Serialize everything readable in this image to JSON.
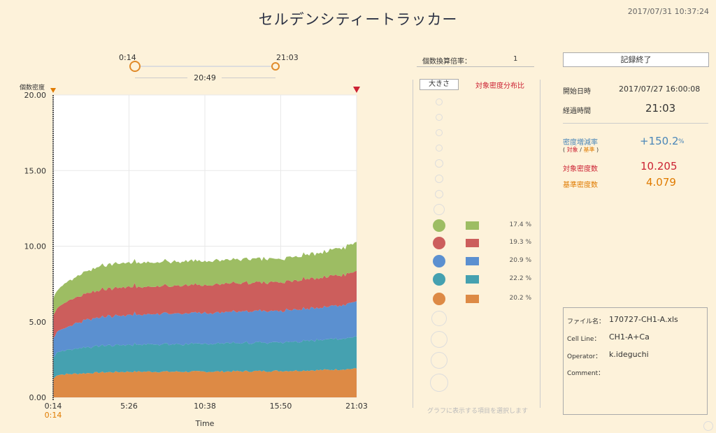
{
  "header": {
    "title": "セルデンシティートラッカー",
    "datetime": "2017/07/31 10:37:24"
  },
  "range": {
    "start": "0:14",
    "end": "21:03",
    "duration": "20:49"
  },
  "chart_data": {
    "type": "area",
    "title": "",
    "ylabel": "個数密度",
    "xlabel": "Time",
    "ylim": [
      0,
      20
    ],
    "yticks": [
      "0.00",
      "5.00",
      "10.00",
      "15.00",
      "20.00"
    ],
    "xticks": [
      "0:14",
      "5:26",
      "10:38",
      "15:50",
      "21:03"
    ],
    "x_highlight_label": "0:14",
    "x": [
      "0:14",
      "0:30",
      "1:30",
      "2:30",
      "3:30",
      "5:26",
      "10:38",
      "15:50",
      "18:30",
      "21:03"
    ],
    "series": [
      {
        "values": [
          1.2,
          1.5,
          1.55,
          1.6,
          1.65,
          1.7,
          1.7,
          1.75,
          1.8,
          1.9
        ],
        "color": "#dd8a45"
      },
      {
        "values": [
          1.4,
          1.5,
          1.6,
          1.7,
          1.75,
          1.8,
          1.85,
          1.9,
          2.0,
          2.1
        ],
        "color": "#45a1b0"
      },
      {
        "values": [
          1.3,
          1.4,
          1.6,
          1.8,
          1.9,
          2.0,
          2.05,
          2.1,
          2.15,
          2.3
        ],
        "color": "#5b90d0"
      },
      {
        "values": [
          1.5,
          1.6,
          1.7,
          1.75,
          1.8,
          1.85,
          1.85,
          1.9,
          2.0,
          2.0
        ],
        "color": "#cc5e5c"
      },
      {
        "values": [
          1.1,
          1.2,
          1.3,
          1.45,
          1.6,
          1.6,
          1.6,
          1.55,
          1.65,
          1.9
        ],
        "color": "#9dbd63"
      }
    ],
    "grid": true
  },
  "middle": {
    "ratio_label": "個数換算倍率：",
    "ratio_value": "1",
    "size_button": "大きさ",
    "dist_label": "対象密度分布比",
    "legend": [
      {
        "color": "#9dbd63",
        "pct": "17.4 %"
      },
      {
        "color": "#cc5e5c",
        "pct": "19.3 %"
      },
      {
        "color": "#5b90d0",
        "pct": "20.9 %"
      },
      {
        "color": "#45a1b0",
        "pct": "22.2 %"
      },
      {
        "color": "#dd8a45",
        "pct": "20.2 %"
      }
    ],
    "hint": "グラフに表示する項目を選択します"
  },
  "right": {
    "stop_button": "記録終了",
    "start_label": "開始日時",
    "start_value": "2017/07/27 16:00:08",
    "elapsed_label": "経過時間",
    "elapsed_value": "21:03",
    "change_label": "密度増減率",
    "change_sub_open": "(",
    "change_sub_target": "対象",
    "change_sub_sep": "/",
    "change_sub_base": "基準",
    "change_sub_close": ")",
    "change_value": "+150.2",
    "change_unit": "%",
    "target_label": "対象密度数",
    "target_value": "10.205",
    "base_label": "基準密度数",
    "base_value": "4.079",
    "colors": {
      "blue": "#4a86b8",
      "red": "#cc2233",
      "orange": "#e07b00"
    }
  },
  "info": {
    "file_label": "ファイル名：",
    "file_value": "170727-CH1-A.xls",
    "cell_label": "Cell Line：",
    "cell_value": "CH1-A+Ca",
    "operator_label": "Operator：",
    "operator_value": "k.ideguchi",
    "comment_label": "Comment：",
    "comment_value": ""
  }
}
